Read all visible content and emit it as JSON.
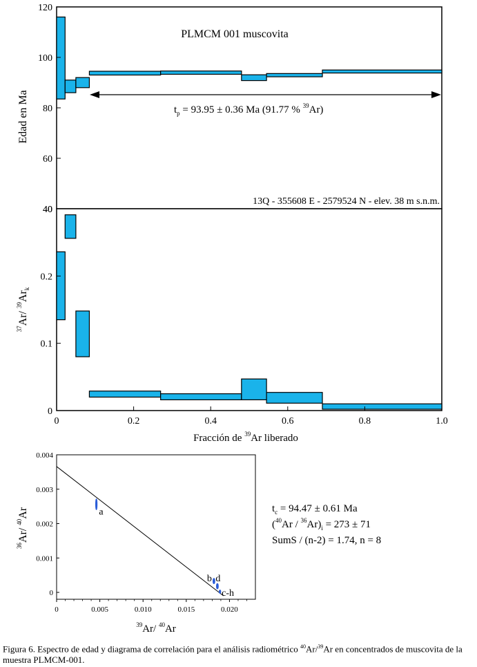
{
  "chart_data": [
    {
      "type": "step",
      "name": "age-spectrum",
      "title": "PLMCM 001 muscovita",
      "ylabel": "Edad en Ma",
      "ylim": [
        40,
        120
      ],
      "yticks": [
        40,
        60,
        80,
        100,
        120
      ],
      "xlim": [
        0,
        1
      ],
      "plateau_label": "t",
      "plateau_label_sub": "p",
      "plateau_text": " = 93.95 ± 0.36 Ma (91.77 % ",
      "plateau_text_sup": "39",
      "plateau_text_end": "Ar)",
      "plateau_range": [
        0.085,
        1.0
      ],
      "location": "13Q - 355608 E - 2579524 N - elev. 38 m s.n.m.",
      "steps": [
        {
          "x0": 0.0,
          "x1": 0.022,
          "lo": 83.5,
          "hi": 116.0
        },
        {
          "x0": 0.022,
          "x1": 0.05,
          "lo": 86.0,
          "hi": 91.0
        },
        {
          "x0": 0.05,
          "x1": 0.085,
          "lo": 88.0,
          "hi": 92.0
        },
        {
          "x0": 0.085,
          "x1": 0.27,
          "lo": 93.0,
          "hi": 94.5
        },
        {
          "x0": 0.27,
          "x1": 0.48,
          "lo": 93.3,
          "hi": 94.6
        },
        {
          "x0": 0.48,
          "x1": 0.545,
          "lo": 90.8,
          "hi": 93.1
        },
        {
          "x0": 0.545,
          "x1": 0.69,
          "lo": 92.3,
          "hi": 93.6
        },
        {
          "x0": 0.69,
          "x1": 1.0,
          "lo": 93.8,
          "hi": 95.0
        }
      ]
    },
    {
      "type": "step",
      "name": "ca-k-spectrum",
      "ylabel_sup1": "37",
      "ylabel_a": "Ar/ ",
      "ylabel_sup2": "39",
      "ylabel_b": "Ar",
      "ylabel_sub": "k",
      "ylim": [
        0,
        0.3
      ],
      "yticks": [
        0,
        0.1,
        0.2
      ],
      "ytick_labels": [
        "0",
        "0.1",
        "0.2"
      ],
      "ytop_label": "40",
      "xlim": [
        0,
        1
      ],
      "xticks": [
        0,
        0.2,
        0.4,
        0.6,
        0.8,
        1.0
      ],
      "xtick_labels": [
        "0",
        "0.2",
        "0.4",
        "0.6",
        "0.8",
        "1.0"
      ],
      "xlabel_a": "Fracción de ",
      "xlabel_sup": "39",
      "xlabel_b": "Ar liberado",
      "steps": [
        {
          "x0": 0.0,
          "x1": 0.022,
          "lo": 0.135,
          "hi": 0.236
        },
        {
          "x0": 0.022,
          "x1": 0.05,
          "lo": 0.256,
          "hi": 0.291
        },
        {
          "x0": 0.05,
          "x1": 0.085,
          "lo": 0.08,
          "hi": 0.148
        },
        {
          "x0": 0.085,
          "x1": 0.27,
          "lo": 0.02,
          "hi": 0.029
        },
        {
          "x0": 0.27,
          "x1": 0.48,
          "lo": 0.016,
          "hi": 0.025
        },
        {
          "x0": 0.48,
          "x1": 0.545,
          "lo": 0.016,
          "hi": 0.047
        },
        {
          "x0": 0.545,
          "x1": 0.69,
          "lo": 0.011,
          "hi": 0.027
        },
        {
          "x0": 0.69,
          "x1": 1.0,
          "lo": 0.002,
          "hi": 0.01
        }
      ]
    },
    {
      "type": "scatter",
      "name": "isochron",
      "xlim": [
        0,
        0.023
      ],
      "ylim": [
        -0.0002,
        0.004
      ],
      "xticks": [
        0,
        0.005,
        0.01,
        0.015,
        0.02
      ],
      "xtick_labels": [
        "0",
        "0.005",
        "0.010",
        "0.015",
        "0.020"
      ],
      "yticks": [
        0,
        0.001,
        0.002,
        0.003,
        0.004
      ],
      "ytick_labels": [
        "0",
        "0.001",
        "0.002",
        "0.003",
        "0.004"
      ],
      "xlabel_sup1": "39",
      "xlabel_a": "Ar/ ",
      "xlabel_sup2": "40",
      "xlabel_b": "Ar",
      "ylabel_sup1": "36",
      "ylabel_a": "Ar/ ",
      "ylabel_sup2": "40",
      "ylabel_b": "Ar",
      "regression_line": {
        "x0": 0,
        "y0": 0.00366,
        "x1": 0.0193,
        "y1": -0.0001
      },
      "points": [
        {
          "label": "a",
          "x": 0.0046,
          "y": 0.00256,
          "ex": 4e-05,
          "ey": 0.00016
        },
        {
          "label": "b",
          "x": 0.0182,
          "y": 0.00033,
          "ex": 0.00012,
          "ey": 8e-05
        },
        {
          "label": "d",
          "x": 0.0186,
          "y": 0.00018,
          "ex": 0.00012,
          "ey": 8e-05
        },
        {
          "label": "c-h",
          "x": 0.0189,
          "y": 2e-05,
          "ex": 0.0001,
          "ey": 5e-05
        }
      ],
      "point_labels": [
        {
          "text": "a",
          "x": 0.0049,
          "y": 0.00236
        },
        {
          "text": "b",
          "x": 0.0174,
          "y": 0.00042
        },
        {
          "text": "d",
          "x": 0.0184,
          "y": 0.00042
        },
        {
          "text": "c-h",
          "x": 0.0191,
          "y": 0.0
        }
      ],
      "results": {
        "tc_label": "t",
        "tc_sub": "c",
        "tc_text": " = 94.47 ± 0.61 Ma",
        "ratio_open": "(",
        "ratio_sup1": "40",
        "ratio_mid": "Ar / ",
        "ratio_sup2": "36",
        "ratio_close": "Ar)",
        "ratio_sub": "i",
        "ratio_text": " = 273 ± 71",
        "sums_text": "SumS / (n-2) = 1.74, n = 8"
      }
    }
  ],
  "caption": {
    "text_a": "Figura 6. Espectro de edad y diagrama de correlación para el análisis radiométrico ",
    "sup1": "40",
    "text_b": "Ar/",
    "sup2": "39",
    "text_c": "Ar en concentrados de muscovita de la muestra PLMCM-001."
  },
  "colors": {
    "fill": "#1ab3ea",
    "point": "#2a5cd8",
    "label": "#3a7fe0",
    "line": "#000000"
  }
}
